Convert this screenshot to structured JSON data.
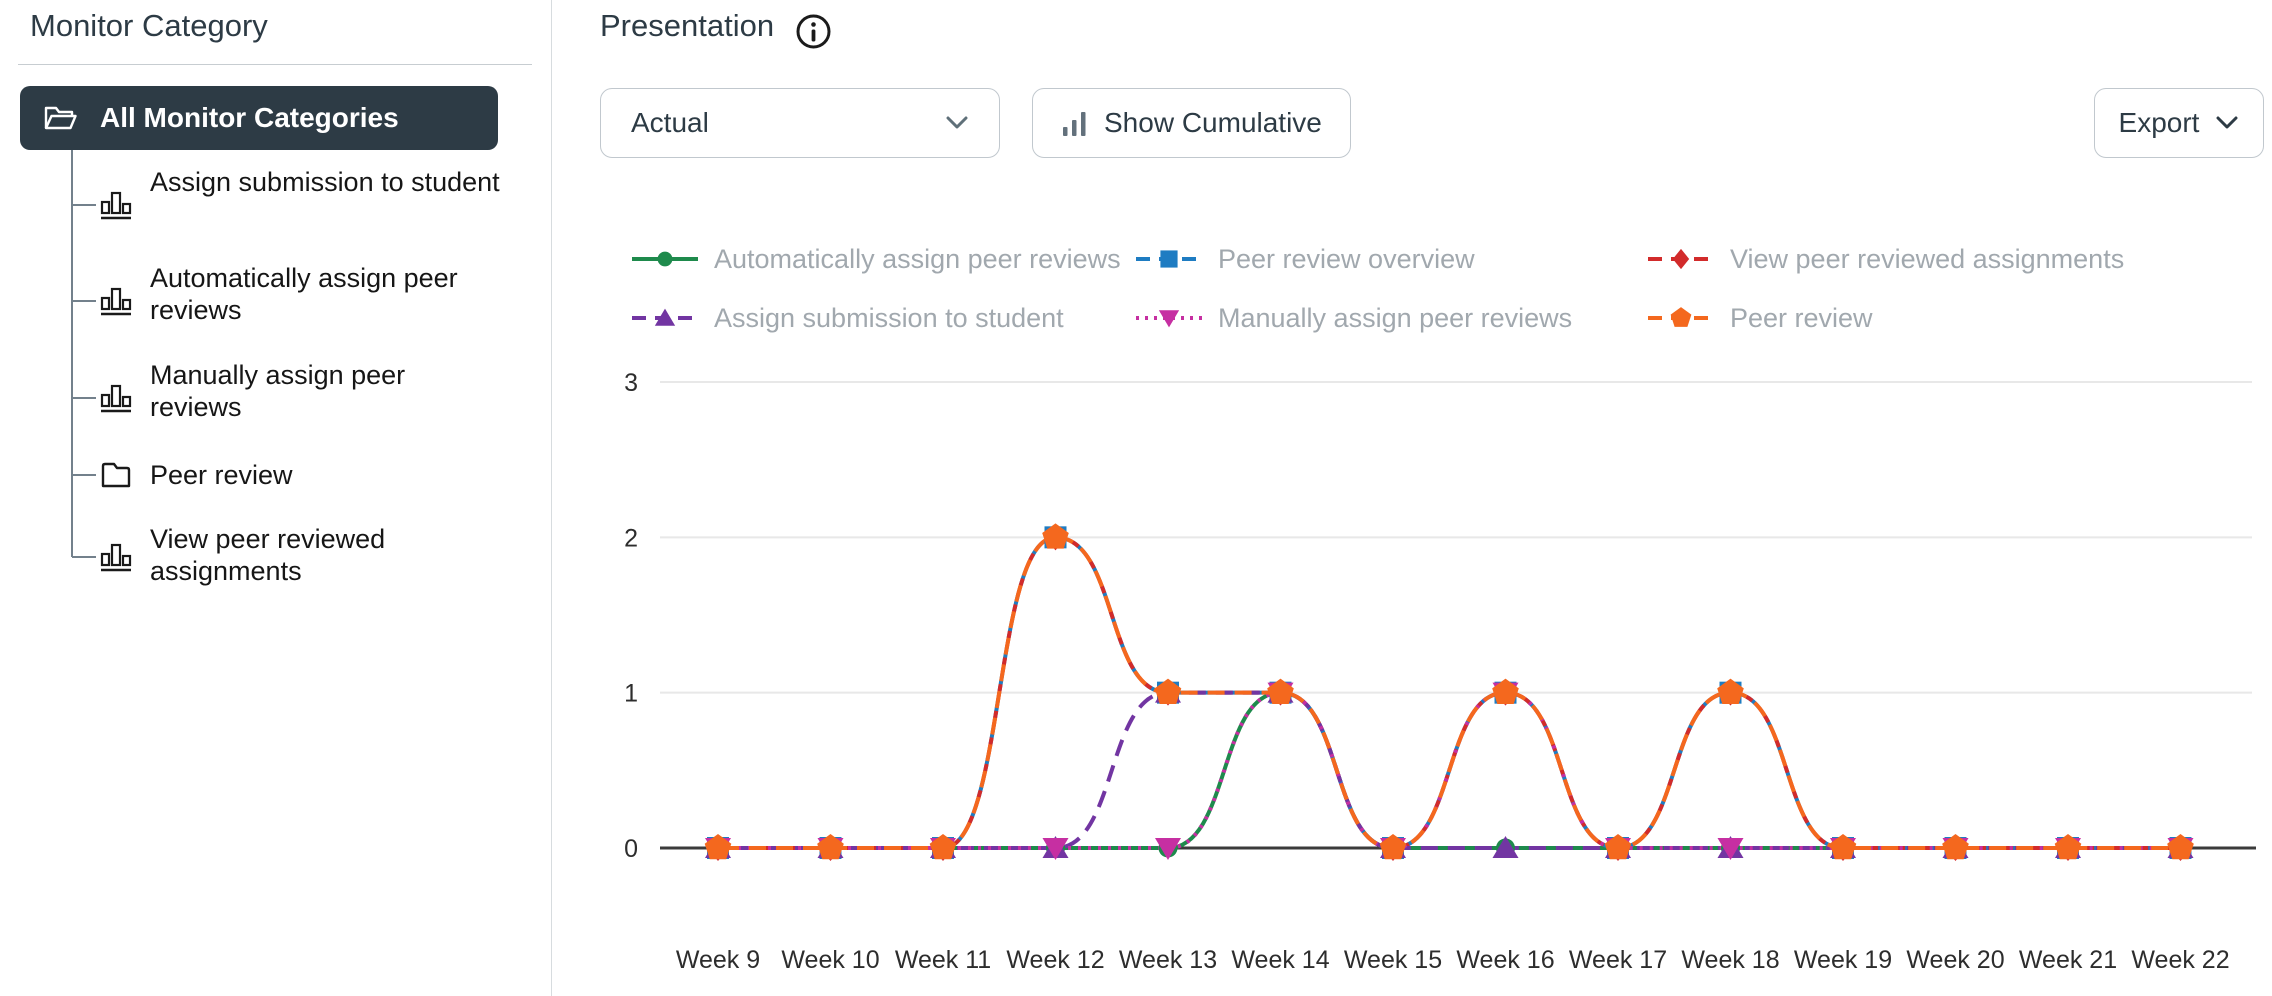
{
  "sidebar": {
    "title": "Monitor Category",
    "selected_category": {
      "label": "All Monitor Categories",
      "icon": "folder-open-icon"
    },
    "items": [
      {
        "label": "Assign submission to student",
        "icon": "bar-chart-icon"
      },
      {
        "label": "Automatically assign peer reviews",
        "icon": "bar-chart-icon"
      },
      {
        "label": "Manually assign peer reviews",
        "icon": "bar-chart-icon"
      },
      {
        "label": "Peer review",
        "icon": "folder-icon"
      },
      {
        "label": "View peer reviewed assignments",
        "icon": "bar-chart-icon"
      }
    ]
  },
  "header": {
    "title": "Presentation",
    "info_icon": "info-icon"
  },
  "toolbar": {
    "presentation_select": {
      "value": "Actual",
      "icon": "chevron-down-icon"
    },
    "cumulative_button": {
      "label": "Show Cumulative",
      "icon": "bar-chart-icon"
    },
    "export_button": {
      "label": "Export",
      "icon": "chevron-down-icon"
    }
  },
  "colors": {
    "ink": "#2D3B45",
    "border": "#C1C8CE",
    "selected_bg": "#2D3B45",
    "legend_text": "#A1A8AE",
    "grid": "#E8E8E8",
    "axis": "#3B3B3B",
    "tree_connector": "#73818C"
  },
  "chart_data": {
    "type": "line",
    "x": [
      "Week 9",
      "Week 10",
      "Week 11",
      "Week 12",
      "Week 13",
      "Week 14",
      "Week 15",
      "Week 16",
      "Week 17",
      "Week 18",
      "Week 19",
      "Week 20",
      "Week 21",
      "Week 22"
    ],
    "ylim": [
      0,
      3
    ],
    "yticks": [
      0,
      1,
      2,
      3
    ],
    "grid": true,
    "legend_position": "top",
    "series": [
      {
        "name": "Automatically assign peer reviews",
        "color": "#1E8A4C",
        "marker": "circle",
        "line_style": "solid",
        "values": [
          0,
          0,
          0,
          0,
          0,
          1,
          0,
          0,
          0,
          0,
          0,
          0,
          0,
          0
        ]
      },
      {
        "name": "Peer review overview",
        "color": "#1E7CC2",
        "marker": "square",
        "line_style": "dashed",
        "values": [
          0,
          0,
          0,
          2,
          1,
          1,
          0,
          1,
          0,
          1,
          0,
          0,
          0,
          0
        ]
      },
      {
        "name": "View peer reviewed assignments",
        "color": "#D22B2B",
        "marker": "diamond",
        "line_style": "dashed",
        "values": [
          0,
          0,
          0,
          2,
          1,
          1,
          0,
          1,
          0,
          1,
          0,
          0,
          0,
          0
        ]
      },
      {
        "name": "Assign submission to student",
        "color": "#7235A2",
        "marker": "triangle-up",
        "line_style": "dashed",
        "values": [
          0,
          0,
          0,
          0,
          1,
          1,
          0,
          0,
          0,
          0,
          0,
          0,
          0,
          0
        ]
      },
      {
        "name": "Manually assign peer reviews",
        "color": "#C62FA2",
        "marker": "triangle-down",
        "line_style": "dotted",
        "values": [
          0,
          0,
          0,
          0,
          0,
          1,
          0,
          1,
          0,
          0,
          0,
          0,
          0,
          0
        ]
      },
      {
        "name": "Peer review",
        "color": "#F4681E",
        "marker": "pentagon",
        "line_style": "dashed",
        "values": [
          0,
          0,
          0,
          2,
          1,
          1,
          0,
          1,
          0,
          1,
          0,
          0,
          0,
          0
        ]
      }
    ]
  }
}
